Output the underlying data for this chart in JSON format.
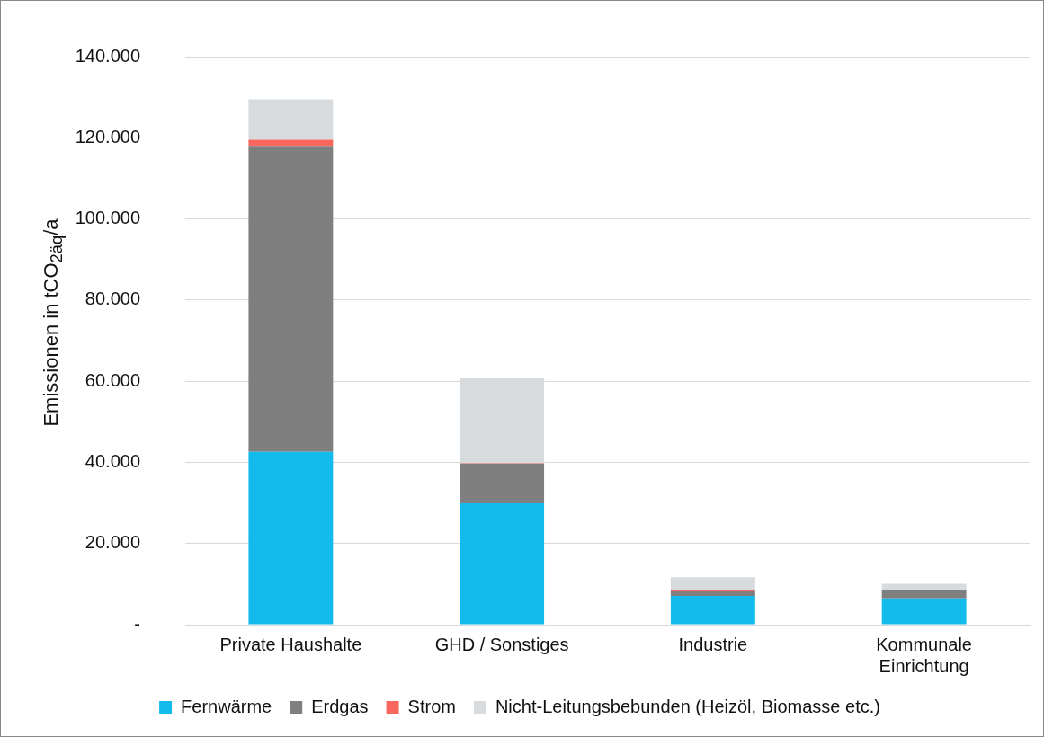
{
  "chart_data": {
    "type": "bar",
    "stacked": true,
    "ylabel": "Emissionen in tCO$_{2äq}$/a",
    "categories": [
      "Private Haushalte",
      "GHD / Sonstiges",
      "Industrie",
      "Kommunale Einrichtung"
    ],
    "series": [
      {
        "name": "Fernwärme",
        "color": "#13bbec",
        "values": [
          42600,
          29900,
          7100,
          6500
        ]
      },
      {
        "name": "Erdgas",
        "color": "#7f7f7f",
        "values": [
          75400,
          9800,
          1100,
          2000
        ]
      },
      {
        "name": "Strom",
        "color": "#f8665e",
        "values": [
          1500,
          100,
          200,
          0
        ]
      },
      {
        "name": "Nicht-Leitungsbebunden (Heizöl, Biomasse etc.)",
        "color": "#d8dbde",
        "values": [
          10000,
          20900,
          3300,
          1600
        ]
      }
    ],
    "ylim": [
      0,
      140000
    ],
    "yticks": [
      {
        "value": 0,
        "label": "-"
      },
      {
        "value": 20000,
        "label": "20.000"
      },
      {
        "value": 40000,
        "label": "40.000"
      },
      {
        "value": 60000,
        "label": "60.000"
      },
      {
        "value": 80000,
        "label": "80.000"
      },
      {
        "value": 100000,
        "label": "100.000"
      },
      {
        "value": 120000,
        "label": "120.000"
      },
      {
        "value": 140000,
        "label": "140.000"
      }
    ],
    "grid": "y",
    "legend": "bottom"
  }
}
